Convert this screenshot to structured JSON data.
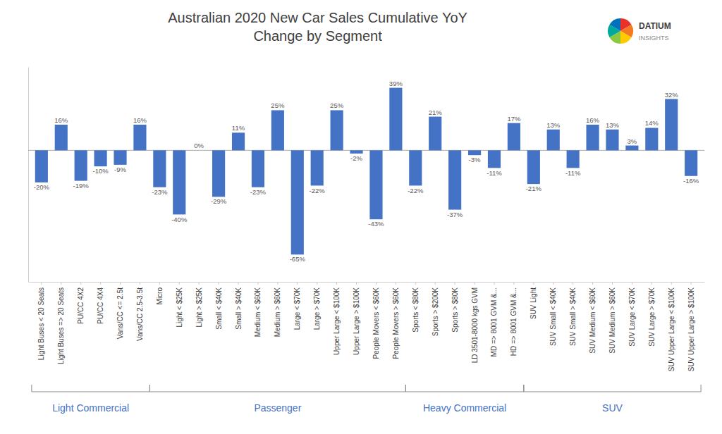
{
  "chart_data": {
    "type": "bar",
    "title": "Australian 2020 New Car Sales Cumulative YoY\nChange by Segment",
    "categories": [
      "Light Buses < 20 Seats",
      "Light Buses => 20 Seats",
      "PU/CC 4X2",
      "PU/CC 4X4",
      "Vans/CC <= 2.5t",
      "Vans/CC 2.5-3.5t",
      "Micro",
      "Light < $25K",
      "Light > $25K",
      "Small < $40K",
      "Small > $40K",
      "Medium < $60K",
      "Medium > $60K",
      "Large < $70K",
      "Large > $70K",
      "Upper Large < $100K",
      "Upper Large > $100K",
      "People Movers < $60K",
      "People Movers > $60K",
      "Sports < $80K",
      "Sports > $200K",
      "Sports > $80K",
      "LD 3501-8000 kgs GVM",
      "MD => 8001 GVM &...",
      "HD => 8001 GVM &...",
      "SUV Light",
      "SUV Small < $40K",
      "SUV Small > $40K",
      "SUV Medium < $60K",
      "SUV Medium > $60K",
      "SUV Large < $70K",
      "SUV Large > $70K",
      "SUV Upper Large < $100K",
      "SUV Upper Large > $100K"
    ],
    "values": [
      -20,
      16,
      -19,
      -10,
      -9,
      16,
      -23,
      -40,
      0,
      -29,
      11,
      -23,
      25,
      -65,
      -22,
      25,
      -2,
      -43,
      39,
      -22,
      21,
      -37,
      -3,
      -11,
      17,
      -21,
      13,
      -11,
      16,
      13,
      3,
      14,
      32,
      -16
    ],
    "value_labels": [
      "-20%",
      "16%",
      "-19%",
      "-10%",
      "-9%",
      "16%",
      "-23%",
      "-40%",
      "0%",
      "-29%",
      "11%",
      "-23%",
      "25%",
      "-65%",
      "-22%",
      "25%",
      "-2%",
      "-43%",
      "39%",
      "-22%",
      "21%",
      "-37%",
      "-3%",
      "-11%",
      "17%",
      "-21%",
      "13%",
      "-11%",
      "16%",
      "13%",
      "3%",
      "14%",
      "32%",
      "-16%"
    ],
    "data_labels": true,
    "color": "#4472C4",
    "ylim": [
      -82,
      52
    ],
    "yticks": [],
    "tick_labels": "x",
    "grid": false,
    "groups": [
      {
        "name": "Light Commercial",
        "span": [
          0,
          5
        ]
      },
      {
        "name": "Passenger",
        "span": [
          6,
          18
        ]
      },
      {
        "name": "Heavy Commercial",
        "span": [
          19,
          24
        ]
      },
      {
        "name": "SUV",
        "span": [
          25,
          33
        ]
      }
    ],
    "annotations": [
      "DATIUM",
      "INSIGHTS"
    ]
  }
}
